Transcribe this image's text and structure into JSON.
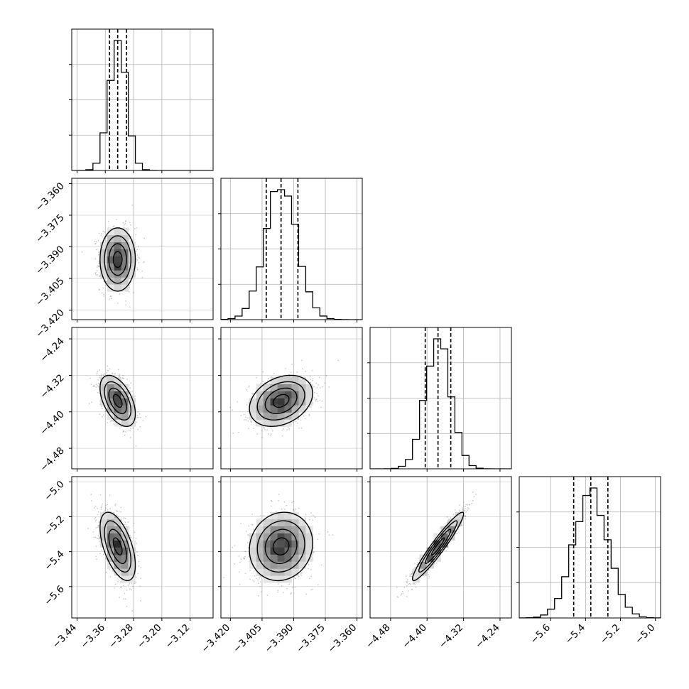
{
  "chart_data": {
    "type": "corner",
    "title": "",
    "parameters": [
      {
        "index": 0,
        "xlim": [
          -3.455,
          -3.055
        ],
        "ticks": [
          "−3.44",
          "−3.36",
          "−3.28",
          "−3.20",
          "−3.12"
        ],
        "tick_values": [
          -3.44,
          -3.36,
          -3.28,
          -3.2,
          -3.12
        ],
        "quantiles": [
          -3.348,
          -3.325,
          -3.3
        ],
        "mean": -3.325,
        "sd": 0.025
      },
      {
        "index": 1,
        "xlim": [
          -3.4245,
          -3.3575
        ],
        "ticks": [
          "−3.420",
          "−3.405",
          "−3.390",
          "−3.375",
          "−3.360"
        ],
        "tick_values": [
          -3.42,
          -3.405,
          -3.39,
          -3.375,
          -3.36
        ],
        "quantiles": [
          -3.403,
          -3.396,
          -3.388
        ],
        "mean": -3.396,
        "sd": 0.0075
      },
      {
        "index": 2,
        "xlim": [
          -4.525,
          -4.215
        ],
        "ticks": [
          "−4.48",
          "−4.40",
          "−4.32",
          "−4.24"
        ],
        "tick_values": [
          -4.48,
          -4.4,
          -4.32,
          -4.24
        ],
        "quantiles": [
          -4.404,
          -4.376,
          -4.348
        ],
        "mean": -4.376,
        "sd": 0.028
      },
      {
        "index": 3,
        "xlim": [
          -5.78,
          -4.97
        ],
        "ticks": [
          "−5.6",
          "−5.4",
          "−5.2",
          "−5.0"
        ],
        "tick_values": [
          -5.6,
          -5.4,
          -5.2,
          -5.0
        ],
        "quantiles": [
          -5.468,
          -5.37,
          -5.272
        ],
        "mean": -5.37,
        "sd": 0.098
      }
    ],
    "correlations": {
      "1-0": 0.0,
      "2-0": -0.5,
      "2-1": 0.3,
      "3-0": -0.55,
      "3-1": 0.1,
      "3-2": 0.95
    },
    "contour_levels_sigma": [
      0.5,
      1.0,
      1.5,
      2.0
    ],
    "grid": true,
    "legend": "none",
    "colors": {
      "line": "#000000",
      "grid": "#b0b0b0",
      "points": "#666666",
      "density_dark": "#000000"
    }
  }
}
